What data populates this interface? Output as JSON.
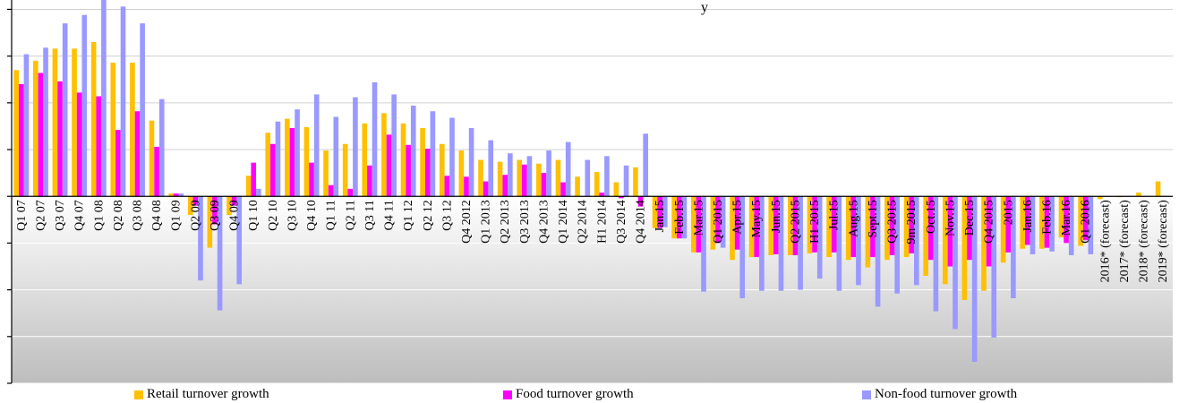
{
  "chart_data": {
    "type": "bar",
    "title": "y",
    "categories": [
      "Q1 07",
      "Q2 07",
      "Q3 07",
      "Q4 07",
      "Q1 08",
      "Q2 08",
      "Q3 08",
      "Q4 08",
      "Q1 09",
      "Q2 09",
      "Q3 09",
      "Q4 09",
      "Q1 10",
      "Q2 10",
      "Q3 10",
      "Q4 10",
      "Q1 11",
      "Q2 11",
      "Q3 11",
      "Q4 11",
      "Q1 12",
      "Q2 12",
      "Q3 12",
      "Q4 2012",
      "Q1 2013",
      "Q2 2013",
      "Q3 2013",
      "Q4 2013",
      "Q1 2014",
      "Q2 2014",
      "H1 2014",
      "Q3 2014",
      "Q4 2014",
      "Jan.15",
      "Feb.15",
      "Mar.15",
      "Q1 2015",
      "Apr.15",
      "May.15",
      "Jun.15",
      "Q2 2015",
      "H1 2015",
      "Jul.15",
      "Aug.15",
      "Sept.15",
      "Q3 2015",
      "9m 2015",
      "Oct.15",
      "Nov.15",
      "Dec.15",
      "Q4 2015",
      "2015",
      "Jan.16",
      "Feb.16",
      "Mar.16",
      "Q1 2016",
      "2016* (forecast)",
      "2017* (forecast)",
      "2018* (forecast)",
      "2019* (forecast)"
    ],
    "series": [
      {
        "name": "Retail turnover growth",
        "color": "#ffc000",
        "values": [
          13.5,
          14.5,
          15.8,
          15.8,
          16.5,
          14.3,
          14.3,
          8.1,
          0.3,
          -2,
          -5.5,
          -2,
          2.2,
          6.8,
          8.3,
          7.4,
          4.9,
          5.6,
          7.8,
          8.9,
          7.8,
          7.3,
          5.6,
          4.9,
          3.9,
          3.7,
          3.9,
          3.5,
          3.9,
          2.1,
          2.6,
          1.5,
          3.1,
          -3.4,
          -4.5,
          -6,
          -5.7,
          -6.8,
          -6.5,
          -6.3,
          -6.3,
          -6.1,
          -6.5,
          -6.8,
          -7.6,
          -6.8,
          -6.5,
          -8.5,
          -9.4,
          -11.1,
          -10.1,
          -7.1,
          -5.6,
          -5.6,
          -4.4,
          -5.3,
          -0.3,
          -0.1,
          0.4,
          1.6
        ]
      },
      {
        "name": "Food turnover growth",
        "color": "#ff00ff",
        "values": [
          12,
          13.2,
          12.3,
          11.1,
          10.7,
          7.1,
          9.1,
          5.3,
          0.3,
          -1,
          -3,
          -1,
          3.6,
          5.6,
          7.3,
          3.6,
          1.2,
          0.8,
          3.3,
          6.6,
          5.5,
          5.1,
          2.2,
          2.1,
          1.6,
          2.3,
          3.4,
          2.5,
          1.5,
          0,
          0.4,
          -0.2,
          -1.1,
          -3.4,
          -4.5,
          -6,
          -5,
          -5.7,
          -6.5,
          -6.2,
          -6.3,
          -6,
          -6,
          -6.5,
          -6.5,
          -6.3,
          -6.1,
          -6.8,
          -7.5,
          -6.8,
          -7.5,
          -6,
          -5.2,
          -5.5,
          -5,
          -4.7,
          0,
          0,
          0,
          0
        ]
      },
      {
        "name": "Non-food turnover growth",
        "color": "#9999ff",
        "values": [
          15.2,
          15.9,
          18.5,
          19.4,
          21.3,
          20.3,
          18.5,
          10.4,
          0.3,
          -9,
          -12.2,
          -9.4,
          0.8,
          8,
          9.3,
          10.9,
          8.5,
          10.6,
          12.2,
          10.9,
          9.7,
          9.1,
          8.4,
          7.3,
          6,
          4.6,
          4.3,
          4.9,
          5.8,
          3.9,
          4.3,
          3.3,
          6.7,
          -3.3,
          -4.5,
          -10.2,
          -5.5,
          -10.9,
          -10.1,
          -10.1,
          -10,
          -8.8,
          -10.1,
          -9.5,
          -11.8,
          -10.4,
          -9.5,
          -12.3,
          -14.2,
          -17.7,
          -15.1,
          -10.9,
          -6.2,
          -5.9,
          -6.3,
          -6.2,
          0,
          0,
          0,
          0
        ]
      }
    ],
    "ylim": [
      -20,
      21
    ],
    "yticks": [
      -20,
      -15,
      -10,
      -5,
      0,
      5,
      10,
      15,
      20
    ],
    "grid": true,
    "legend": "bottom"
  }
}
